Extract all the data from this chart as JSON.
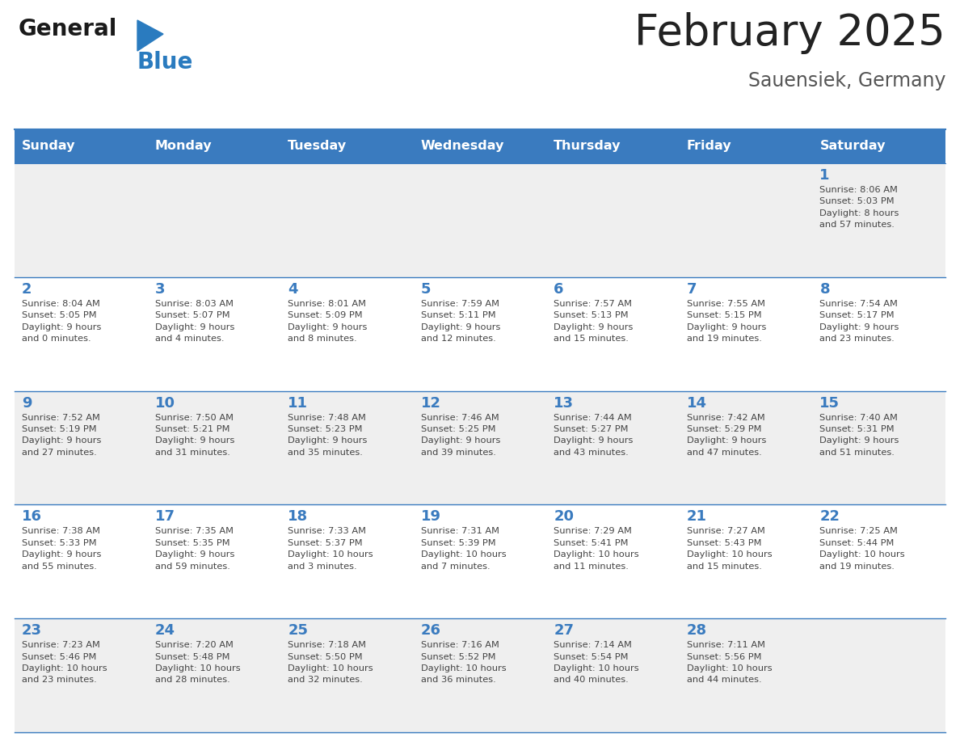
{
  "title": "February 2025",
  "subtitle": "Sauensiek, Germany",
  "days_of_week": [
    "Sunday",
    "Monday",
    "Tuesday",
    "Wednesday",
    "Thursday",
    "Friday",
    "Saturday"
  ],
  "header_bg_color": "#3a7bbf",
  "header_text_color": "#ffffff",
  "cell_bg_even": "#efefef",
  "cell_bg_odd": "#ffffff",
  "day_num_color": "#3a7bbf",
  "cell_text_color": "#444444",
  "border_color": "#3a7bbf",
  "title_color": "#222222",
  "subtitle_color": "#555555",
  "logo_general_color": "#1a1a1a",
  "logo_blue_color": "#2a7bbf",
  "weeks": [
    [
      {
        "day": null,
        "info": ""
      },
      {
        "day": null,
        "info": ""
      },
      {
        "day": null,
        "info": ""
      },
      {
        "day": null,
        "info": ""
      },
      {
        "day": null,
        "info": ""
      },
      {
        "day": null,
        "info": ""
      },
      {
        "day": 1,
        "info": "Sunrise: 8:06 AM\nSunset: 5:03 PM\nDaylight: 8 hours\nand 57 minutes."
      }
    ],
    [
      {
        "day": 2,
        "info": "Sunrise: 8:04 AM\nSunset: 5:05 PM\nDaylight: 9 hours\nand 0 minutes."
      },
      {
        "day": 3,
        "info": "Sunrise: 8:03 AM\nSunset: 5:07 PM\nDaylight: 9 hours\nand 4 minutes."
      },
      {
        "day": 4,
        "info": "Sunrise: 8:01 AM\nSunset: 5:09 PM\nDaylight: 9 hours\nand 8 minutes."
      },
      {
        "day": 5,
        "info": "Sunrise: 7:59 AM\nSunset: 5:11 PM\nDaylight: 9 hours\nand 12 minutes."
      },
      {
        "day": 6,
        "info": "Sunrise: 7:57 AM\nSunset: 5:13 PM\nDaylight: 9 hours\nand 15 minutes."
      },
      {
        "day": 7,
        "info": "Sunrise: 7:55 AM\nSunset: 5:15 PM\nDaylight: 9 hours\nand 19 minutes."
      },
      {
        "day": 8,
        "info": "Sunrise: 7:54 AM\nSunset: 5:17 PM\nDaylight: 9 hours\nand 23 minutes."
      }
    ],
    [
      {
        "day": 9,
        "info": "Sunrise: 7:52 AM\nSunset: 5:19 PM\nDaylight: 9 hours\nand 27 minutes."
      },
      {
        "day": 10,
        "info": "Sunrise: 7:50 AM\nSunset: 5:21 PM\nDaylight: 9 hours\nand 31 minutes."
      },
      {
        "day": 11,
        "info": "Sunrise: 7:48 AM\nSunset: 5:23 PM\nDaylight: 9 hours\nand 35 minutes."
      },
      {
        "day": 12,
        "info": "Sunrise: 7:46 AM\nSunset: 5:25 PM\nDaylight: 9 hours\nand 39 minutes."
      },
      {
        "day": 13,
        "info": "Sunrise: 7:44 AM\nSunset: 5:27 PM\nDaylight: 9 hours\nand 43 minutes."
      },
      {
        "day": 14,
        "info": "Sunrise: 7:42 AM\nSunset: 5:29 PM\nDaylight: 9 hours\nand 47 minutes."
      },
      {
        "day": 15,
        "info": "Sunrise: 7:40 AM\nSunset: 5:31 PM\nDaylight: 9 hours\nand 51 minutes."
      }
    ],
    [
      {
        "day": 16,
        "info": "Sunrise: 7:38 AM\nSunset: 5:33 PM\nDaylight: 9 hours\nand 55 minutes."
      },
      {
        "day": 17,
        "info": "Sunrise: 7:35 AM\nSunset: 5:35 PM\nDaylight: 9 hours\nand 59 minutes."
      },
      {
        "day": 18,
        "info": "Sunrise: 7:33 AM\nSunset: 5:37 PM\nDaylight: 10 hours\nand 3 minutes."
      },
      {
        "day": 19,
        "info": "Sunrise: 7:31 AM\nSunset: 5:39 PM\nDaylight: 10 hours\nand 7 minutes."
      },
      {
        "day": 20,
        "info": "Sunrise: 7:29 AM\nSunset: 5:41 PM\nDaylight: 10 hours\nand 11 minutes."
      },
      {
        "day": 21,
        "info": "Sunrise: 7:27 AM\nSunset: 5:43 PM\nDaylight: 10 hours\nand 15 minutes."
      },
      {
        "day": 22,
        "info": "Sunrise: 7:25 AM\nSunset: 5:44 PM\nDaylight: 10 hours\nand 19 minutes."
      }
    ],
    [
      {
        "day": 23,
        "info": "Sunrise: 7:23 AM\nSunset: 5:46 PM\nDaylight: 10 hours\nand 23 minutes."
      },
      {
        "day": 24,
        "info": "Sunrise: 7:20 AM\nSunset: 5:48 PM\nDaylight: 10 hours\nand 28 minutes."
      },
      {
        "day": 25,
        "info": "Sunrise: 7:18 AM\nSunset: 5:50 PM\nDaylight: 10 hours\nand 32 minutes."
      },
      {
        "day": 26,
        "info": "Sunrise: 7:16 AM\nSunset: 5:52 PM\nDaylight: 10 hours\nand 36 minutes."
      },
      {
        "day": 27,
        "info": "Sunrise: 7:14 AM\nSunset: 5:54 PM\nDaylight: 10 hours\nand 40 minutes."
      },
      {
        "day": 28,
        "info": "Sunrise: 7:11 AM\nSunset: 5:56 PM\nDaylight: 10 hours\nand 44 minutes."
      },
      {
        "day": null,
        "info": ""
      }
    ]
  ]
}
